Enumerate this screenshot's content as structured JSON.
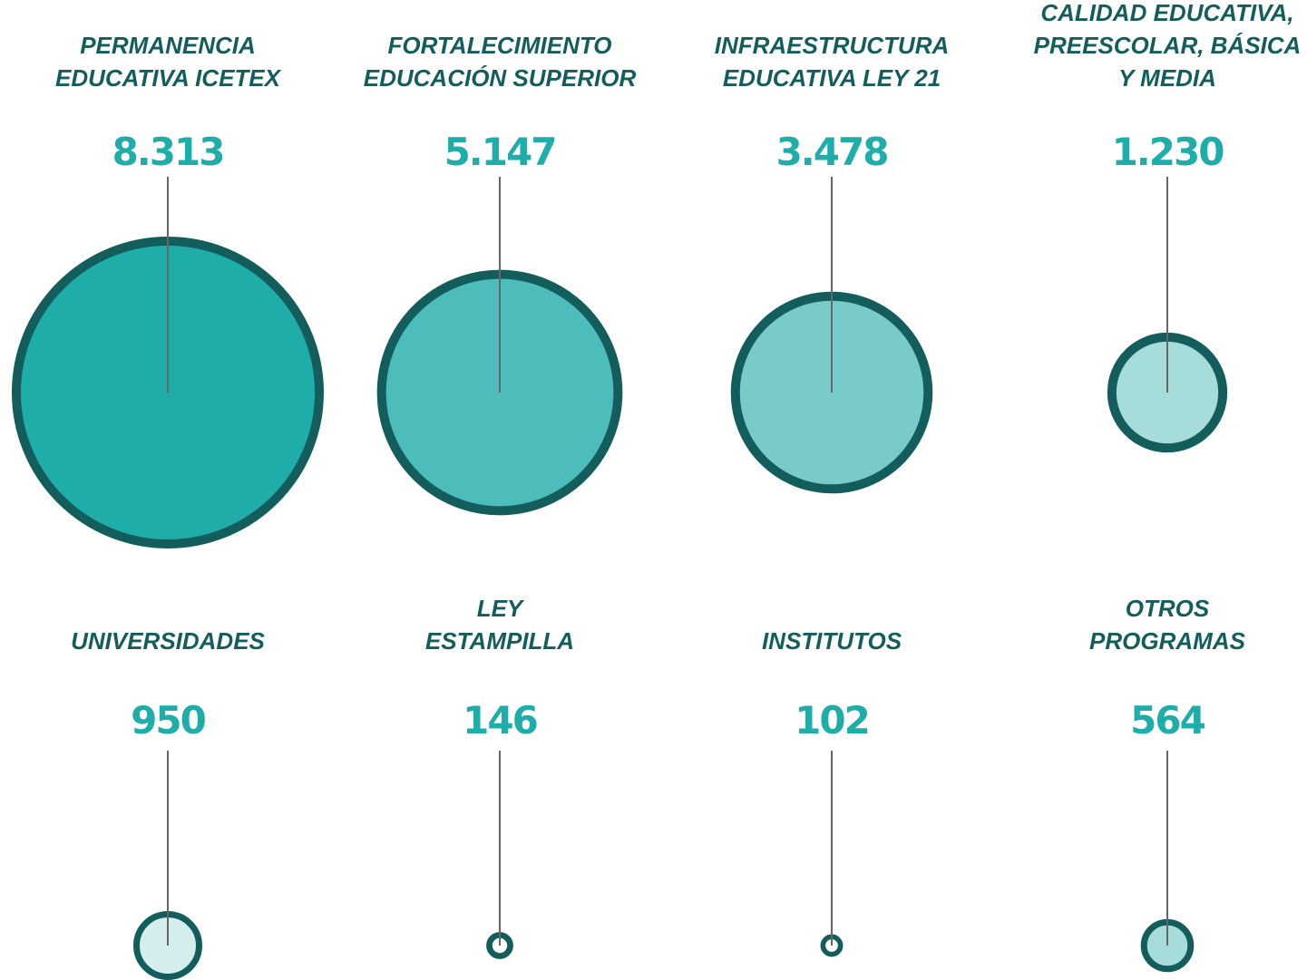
{
  "chart_data": {
    "type": "bubble",
    "categories": [
      [
        "PERMANENCIA",
        "EDUCATIVA ICETEX"
      ],
      [
        "FORTALECIMIENTO",
        "EDUCACIÓN SUPERIOR"
      ],
      [
        "INFRAESTRUCTURA",
        "EDUCATIVA LEY 21"
      ],
      [
        "CALIDAD EDUCATIVA,",
        "PREESCOLAR, BÁSICA",
        "Y MEDIA"
      ],
      [
        "UNIVERSIDADES"
      ],
      [
        "LEY",
        "ESTAMPILLA"
      ],
      [
        "INSTITUTOS"
      ],
      [
        "OTROS",
        "PROGRAMAS"
      ]
    ],
    "values": [
      8313,
      5147,
      3478,
      1230,
      950,
      146,
      102,
      564
    ],
    "value_labels": [
      "8.313",
      "5.147",
      "3.478",
      "1.230",
      "950",
      "146",
      "102",
      "564"
    ],
    "colors": [
      "#1fada9",
      "#4cbdbb",
      "#78cbc9",
      "#a6dcda",
      "#d3eeed",
      "#ffffff",
      "#ffffff",
      "#a6dcda"
    ],
    "stroke_color": "#135e5c"
  }
}
